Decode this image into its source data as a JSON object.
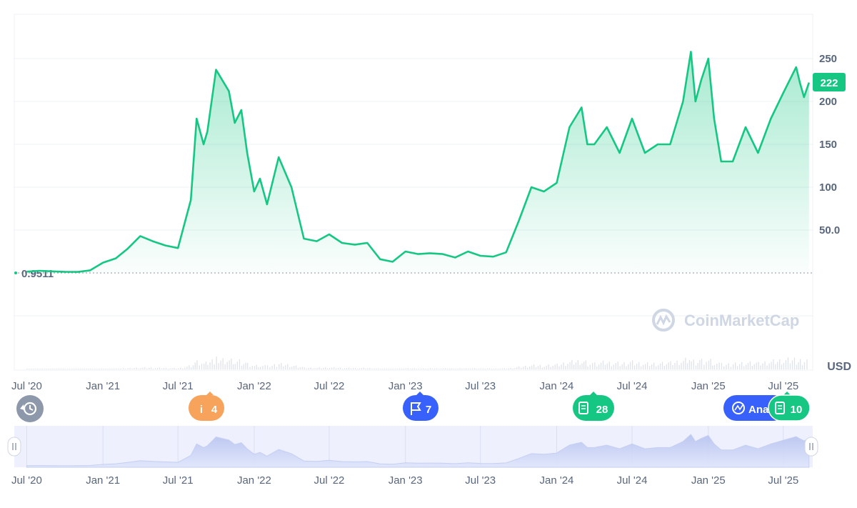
{
  "chart_data": {
    "type": "area",
    "title": "",
    "unit": "USD",
    "baseline_value": "0.9511",
    "current_value": "222",
    "y_ticks": [
      "250",
      "200",
      "150",
      "100",
      "50.0"
    ],
    "x_ticks": [
      "Jul '20",
      "Jan '21",
      "Jul '21",
      "Jan '22",
      "Jul '22",
      "Jan '23",
      "Jul '23",
      "Jan '24",
      "Jul '24",
      "Jan '25",
      "Jul '25"
    ],
    "ylim": [
      0,
      270
    ],
    "line_color": "#16c784",
    "series": [
      {
        "name": "",
        "x": [
          "2020-07-01",
          "2020-08-01",
          "2020-09-01",
          "2020-10-01",
          "2020-11-01",
          "2020-12-01",
          "2021-01-01",
          "2021-02-01",
          "2021-03-01",
          "2021-04-01",
          "2021-05-01",
          "2021-06-01",
          "2021-07-01",
          "2021-08-01",
          "2021-08-15",
          "2021-09-01",
          "2021-09-10",
          "2021-10-01",
          "2021-11-01",
          "2021-11-15",
          "2021-12-01",
          "2021-12-15",
          "2022-01-01",
          "2022-01-15",
          "2022-02-01",
          "2022-03-01",
          "2022-04-01",
          "2022-05-01",
          "2022-06-01",
          "2022-07-01",
          "2022-08-01",
          "2022-09-01",
          "2022-10-01",
          "2022-11-01",
          "2022-12-01",
          "2023-01-01",
          "2023-02-01",
          "2023-03-01",
          "2023-04-01",
          "2023-05-01",
          "2023-06-01",
          "2023-07-01",
          "2023-08-01",
          "2023-09-01",
          "2023-10-01",
          "2023-11-01",
          "2023-12-01",
          "2024-01-01",
          "2024-02-01",
          "2024-03-01",
          "2024-03-15",
          "2024-04-01",
          "2024-05-01",
          "2024-06-01",
          "2024-07-01",
          "2024-08-01",
          "2024-09-01",
          "2024-10-01",
          "2024-11-01",
          "2024-11-20",
          "2024-12-01",
          "2024-12-15",
          "2025-01-01",
          "2025-01-15",
          "2025-02-01",
          "2025-03-01",
          "2025-04-01",
          "2025-05-01",
          "2025-06-01",
          "2025-07-01",
          "2025-08-01",
          "2025-08-10",
          "2025-08-20",
          "2025-09-01"
        ],
        "values": [
          1.5,
          2.5,
          1.8,
          1.3,
          1.2,
          3,
          12,
          17,
          28,
          43,
          37,
          32,
          29,
          85,
          180,
          150,
          165,
          237,
          212,
          175,
          190,
          140,
          95,
          110,
          80,
          135,
          100,
          40,
          37,
          45,
          35,
          33,
          35,
          16,
          13,
          25,
          22,
          23,
          22,
          18,
          25,
          20,
          19,
          24,
          60,
          100,
          95,
          105,
          170,
          193,
          150,
          150,
          170,
          140,
          180,
          140,
          150,
          150,
          200,
          258,
          200,
          225,
          250,
          180,
          130,
          130,
          170,
          140,
          180,
          210,
          240,
          222,
          205,
          222
        ]
      }
    ]
  },
  "watermark": "CoinMarketCap",
  "markers": [
    {
      "icon": "info-icon",
      "count": "4",
      "color": "#f7a35c"
    },
    {
      "icon": "flag-icon",
      "count": "7",
      "color": "#3861fb"
    },
    {
      "icon": "document-icon",
      "count": "28",
      "color": "#16c784"
    },
    {
      "icon": "analysis-icon",
      "label": "Ana",
      "color": "#3861fb"
    },
    {
      "icon": "document-icon",
      "count": "10",
      "color": "#16c784"
    }
  ],
  "history_icon": "history-icon"
}
